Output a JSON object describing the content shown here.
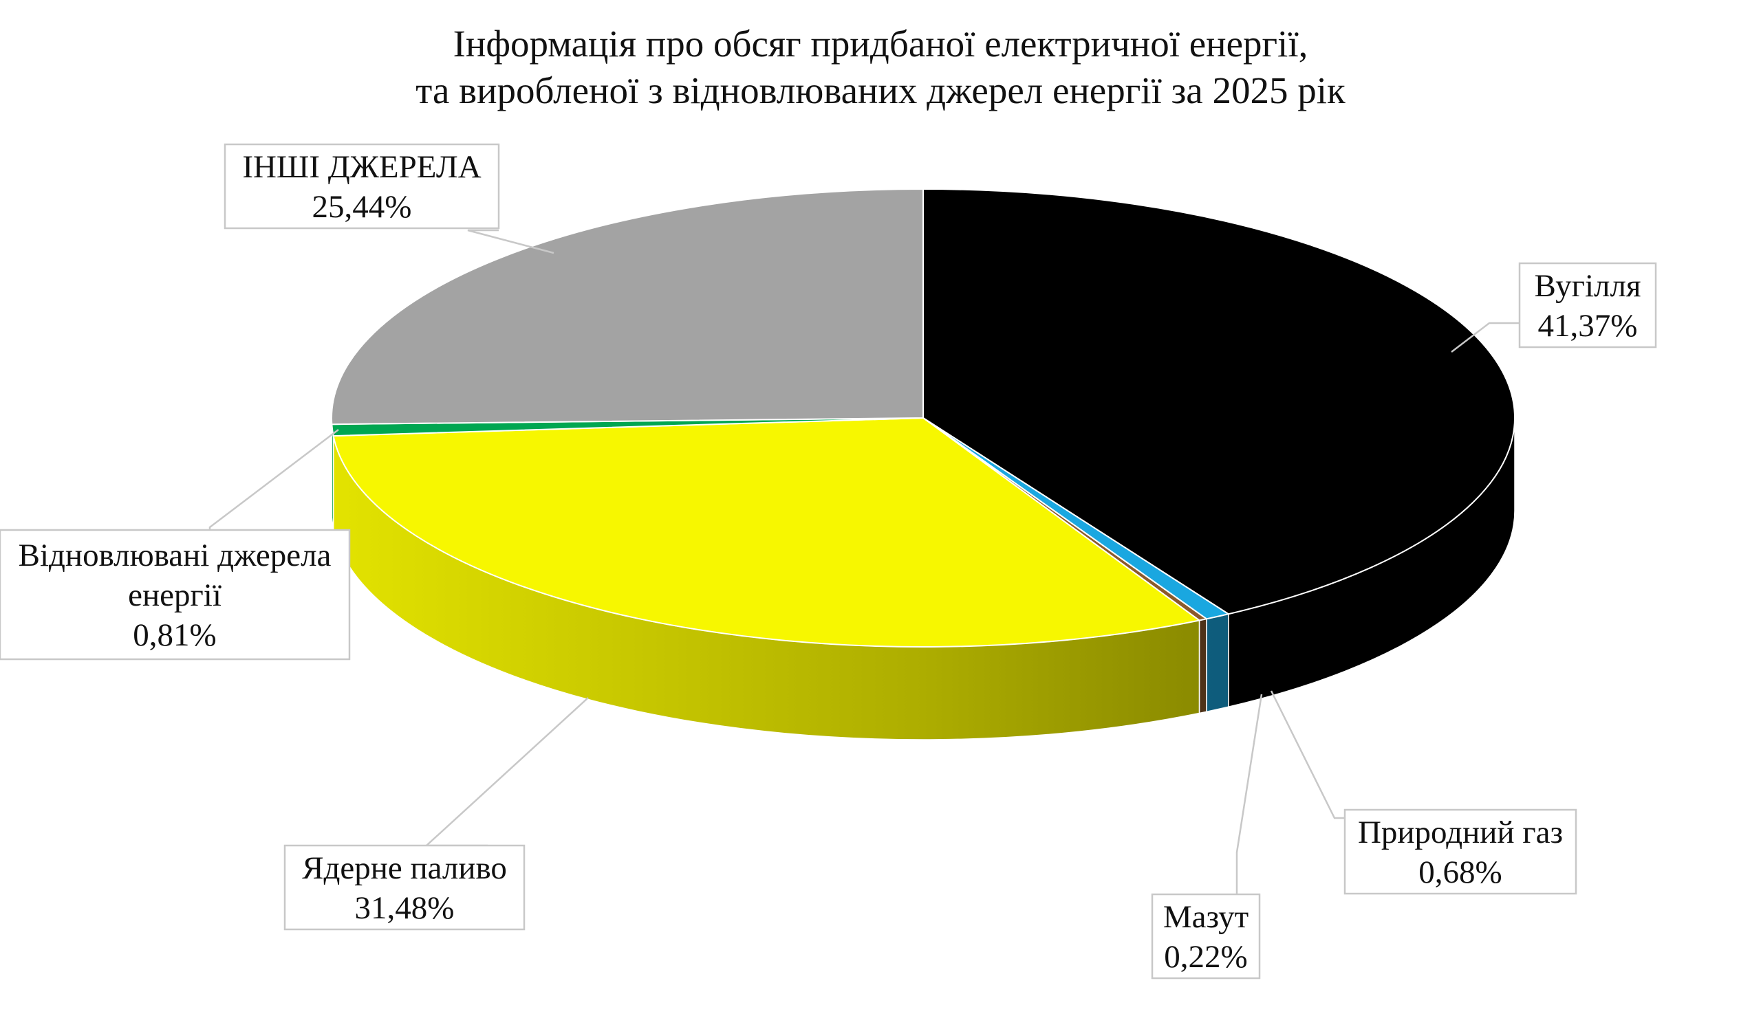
{
  "chart_data": {
    "type": "pie",
    "title_lines": [
      "Інформація про обсяг придбаної електричної енергії,",
      "та виробленої з відновлюваних джерел енергії за 2025 рік"
    ],
    "units": "%",
    "slices": [
      {
        "label_lines": [
          "Вугілля"
        ],
        "value": 41.37,
        "value_text": "41,37%",
        "color": "#000000"
      },
      {
        "label_lines": [
          "Природний газ"
        ],
        "value": 0.68,
        "value_text": "0,68%",
        "color": "#1AA7E0"
      },
      {
        "label_lines": [
          "Мазут"
        ],
        "value": 0.22,
        "value_text": "0,22%",
        "color": "#8B5A2B"
      },
      {
        "label_lines": [
          "Ядерне паливо"
        ],
        "value": 31.48,
        "value_text": "31,48%",
        "color": "#F7F700"
      },
      {
        "label_lines": [
          "Відновлювані джерела",
          "енергії"
        ],
        "value": 0.81,
        "value_text": "0,81%",
        "color": "#00A651"
      },
      {
        "label_lines": [
          "ІНШІ ДЖЕРЕЛА"
        ],
        "value": 25.44,
        "value_text": "25,44%",
        "color": "#A3A3A3"
      }
    ],
    "legend": "none",
    "style": "3d-pie",
    "start": "top, clockwise"
  }
}
